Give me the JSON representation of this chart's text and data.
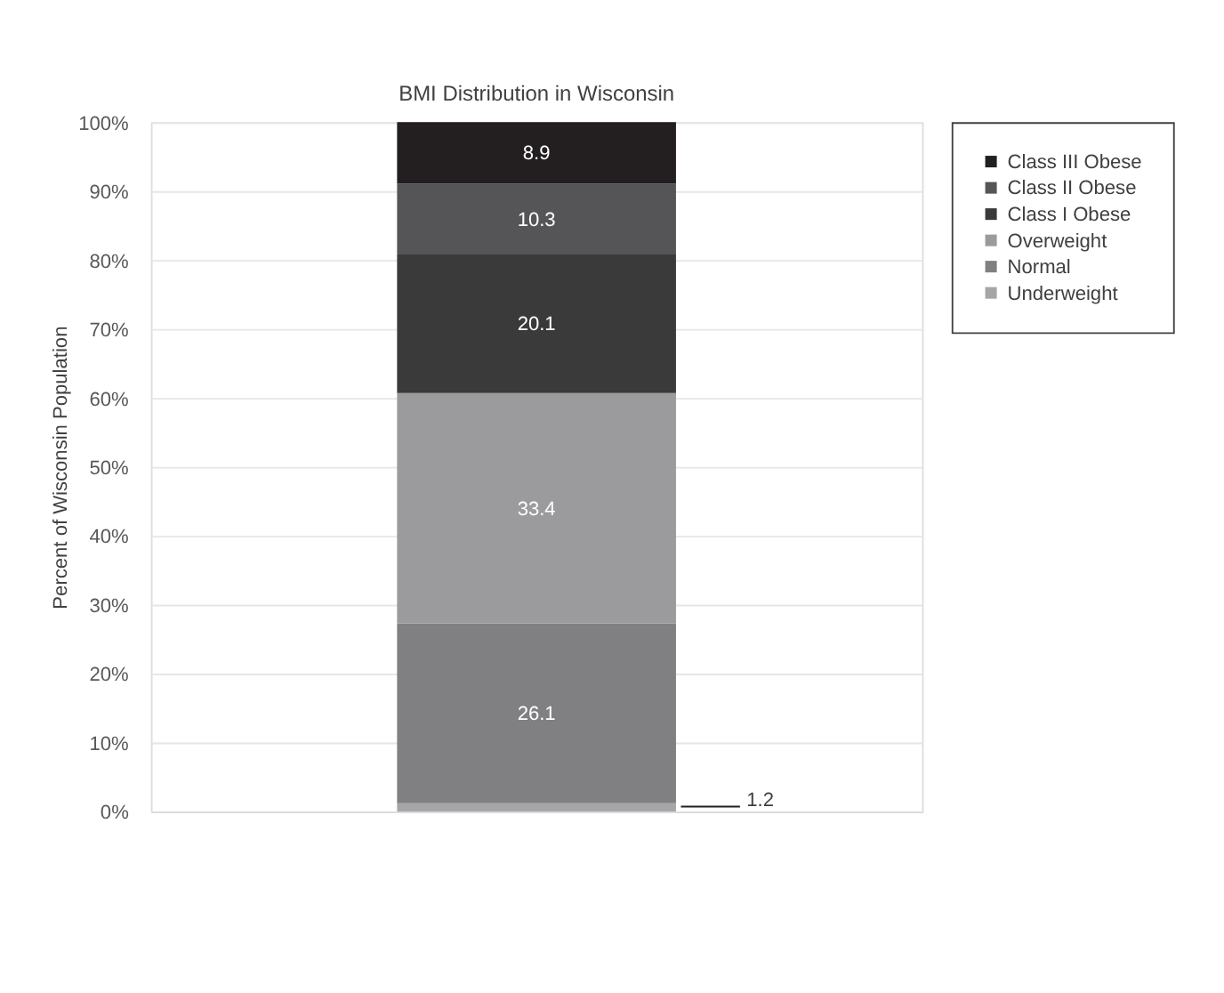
{
  "chart_data": {
    "type": "bar",
    "title": "BMI Distribution in Wisconsin",
    "ylabel": "Percent of Wisconsin Population",
    "categories": [
      null
    ],
    "stacked": true,
    "legend": "right",
    "grid": "y",
    "tick_labels": "y",
    "ylim": [
      0,
      100
    ],
    "yticks": [
      {
        "value": 0,
        "label": "0%"
      },
      {
        "value": 10,
        "label": "10%"
      },
      {
        "value": 20,
        "label": "20%"
      },
      {
        "value": 30,
        "label": "30%"
      },
      {
        "value": 40,
        "label": "40%"
      },
      {
        "value": 50,
        "label": "50%"
      },
      {
        "value": 60,
        "label": "60%"
      },
      {
        "value": 70,
        "label": "70%"
      },
      {
        "value": 80,
        "label": "80%"
      },
      {
        "value": 90,
        "label": "90%"
      },
      {
        "value": 100,
        "label": "100%"
      }
    ],
    "annotations": [
      "1.2"
    ],
    "series": [
      {
        "name": "Underweight",
        "color": "#a6a6a8",
        "values": [
          1.2
        ],
        "value_labels": [
          null
        ]
      },
      {
        "name": "Normal",
        "color": "#808083",
        "values": [
          26.1
        ],
        "value_labels": [
          "26.1"
        ]
      },
      {
        "name": "Overweight",
        "color": "#9b9b9e",
        "values": [
          33.4
        ],
        "value_labels": [
          "33.4"
        ]
      },
      {
        "name": "Class I Obese",
        "color": "#3a3a3a",
        "values": [
          20.1
        ],
        "value_labels": [
          "20.1"
        ]
      },
      {
        "name": "Class II Obese",
        "color": "#555557",
        "values": [
          10.3
        ],
        "value_labels": [
          "10.3"
        ]
      },
      {
        "name": "Class III Obese",
        "color": "#231f20",
        "values": [
          8.9
        ],
        "value_labels": [
          "8.9"
        ]
      }
    ]
  }
}
